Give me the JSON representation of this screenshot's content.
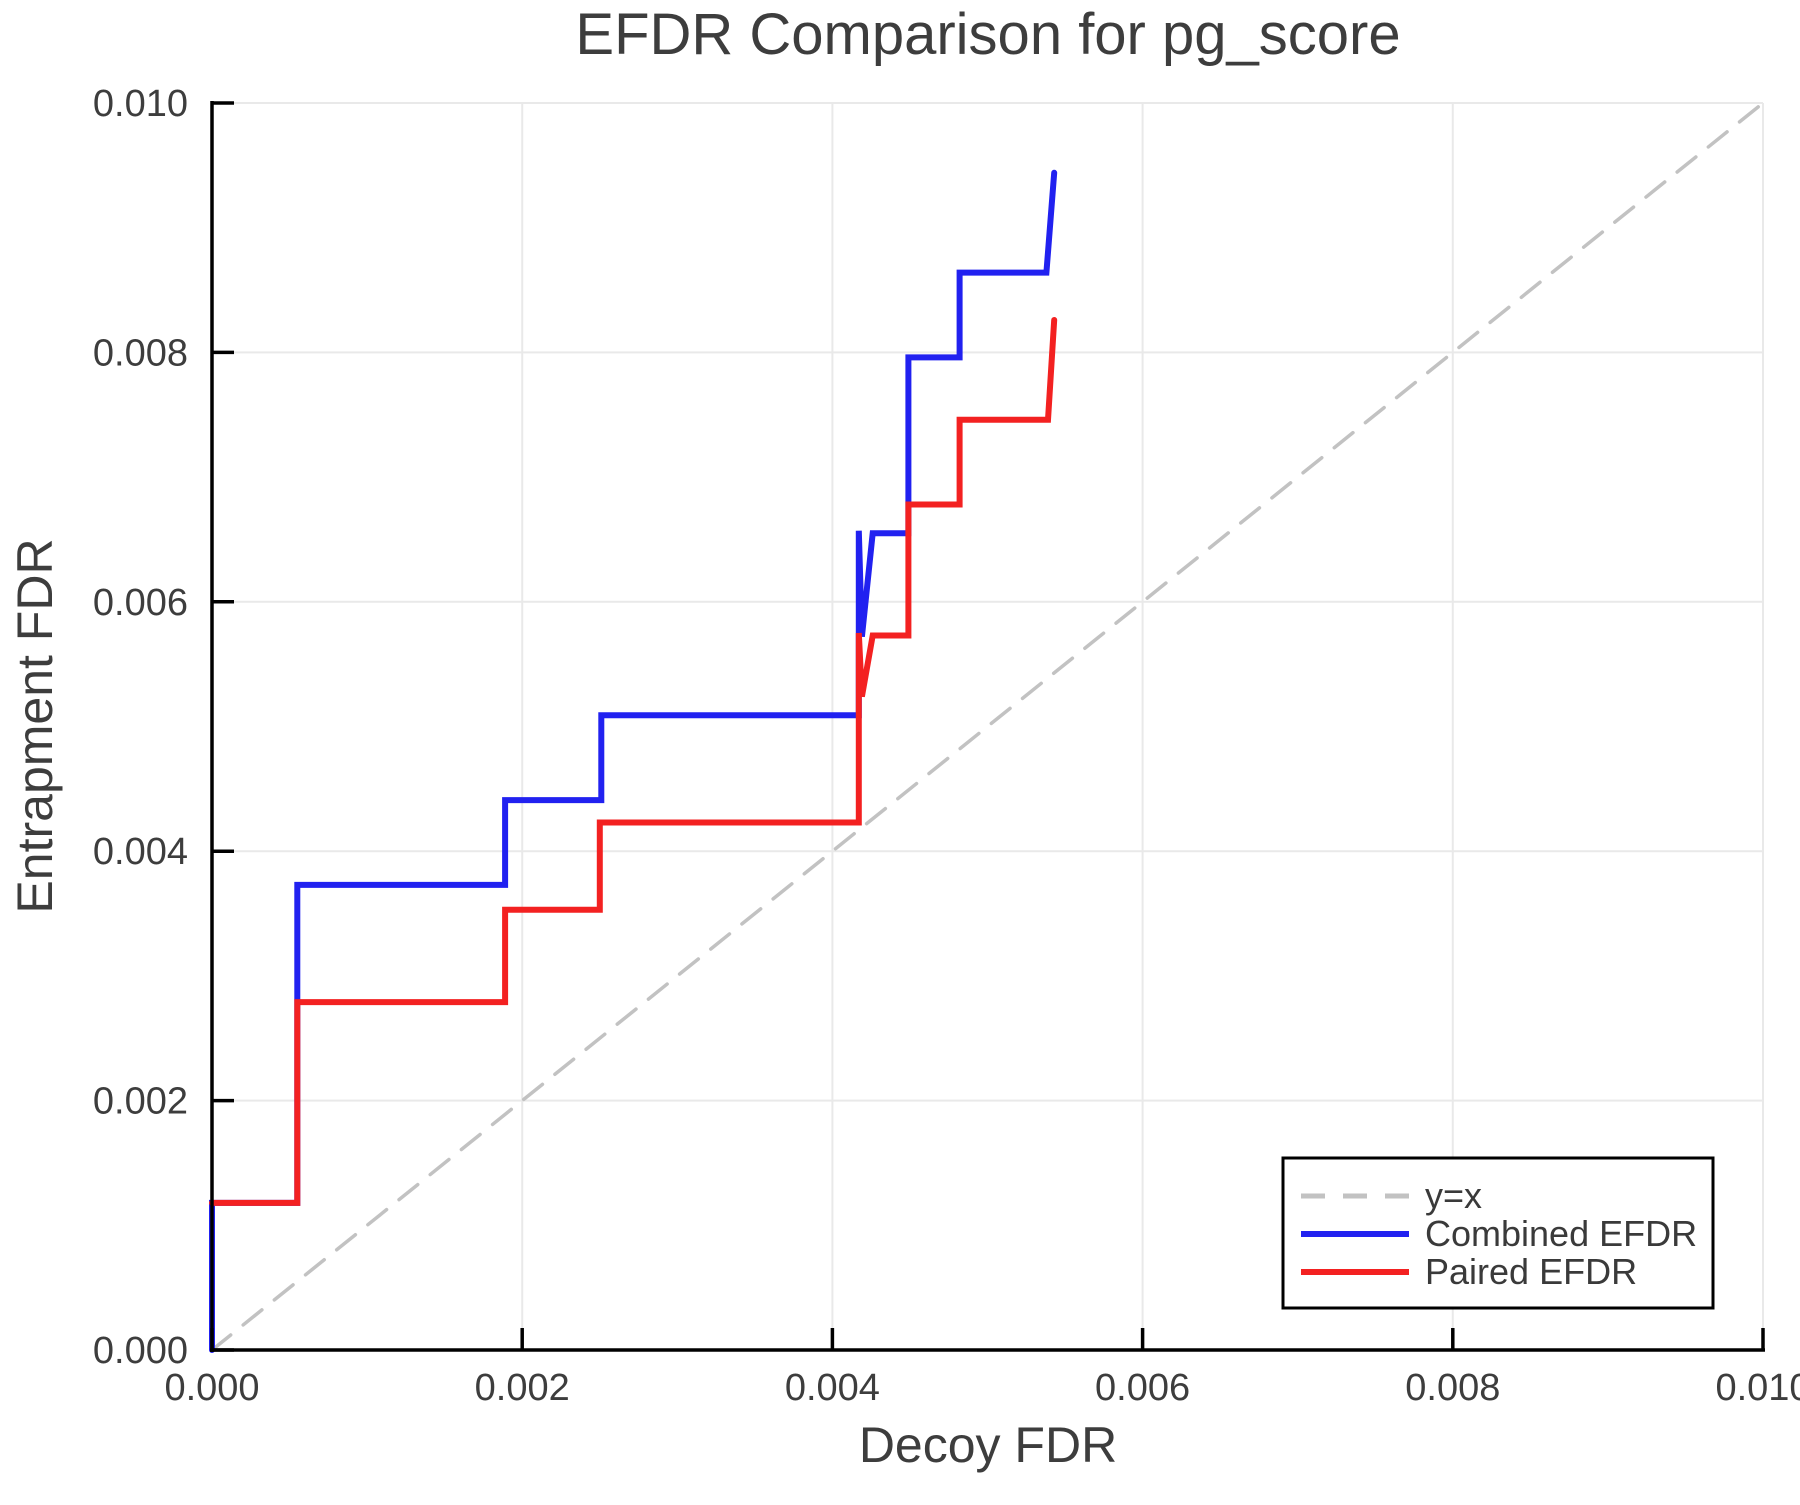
{
  "figure": {
    "background": "#ffffff"
  },
  "chart_data": {
    "type": "line",
    "title": "EFDR Comparison for pg_score",
    "xlabel": "Decoy FDR",
    "ylabel": "Entrapment FDR",
    "xlim": [
      0.0,
      0.01
    ],
    "ylim": [
      0.0,
      0.01
    ],
    "xticks": [
      0.0,
      0.002,
      0.004,
      0.006,
      0.008,
      0.01
    ],
    "yticks": [
      0.0,
      0.002,
      0.004,
      0.006,
      0.008,
      0.01
    ],
    "tick_decimals": 3,
    "grid": true,
    "grid_color": "#e9e9e9",
    "axis_color": "#000000",
    "text_color": "#3d3d3d",
    "legend": {
      "position": "lower right",
      "background": "#ffffff",
      "border_color": "#000000"
    },
    "series": [
      {
        "name": "y=x",
        "color": "#c2c2c2",
        "style": "dashed",
        "width": 3.5,
        "points": [
          [
            0.0,
            0.0
          ],
          [
            0.01,
            0.01
          ]
        ]
      },
      {
        "name": "Combined EFDR",
        "color": "#2121f0",
        "style": "solid",
        "width": 6,
        "points": [
          [
            0.0,
            0.0
          ],
          [
            0.0,
            0.00118
          ],
          [
            0.00055,
            0.00118
          ],
          [
            0.00055,
            0.00373
          ],
          [
            0.00189,
            0.00373
          ],
          [
            0.00189,
            0.00441
          ],
          [
            0.00251,
            0.00441
          ],
          [
            0.00251,
            0.00509
          ],
          [
            0.00417,
            0.00509
          ],
          [
            0.00417,
            0.00657
          ],
          [
            0.00419,
            0.00572
          ],
          [
            0.00426,
            0.00655
          ],
          [
            0.00449,
            0.00655
          ],
          [
            0.00449,
            0.00796
          ],
          [
            0.00482,
            0.00796
          ],
          [
            0.00482,
            0.00864
          ],
          [
            0.00538,
            0.00864
          ],
          [
            0.00543,
            0.00944
          ]
        ]
      },
      {
        "name": "Paired EFDR",
        "color": "#f32121",
        "style": "solid",
        "width": 6,
        "points": [
          [
            0.0,
            0.00118
          ],
          [
            0.00055,
            0.00118
          ],
          [
            0.00055,
            0.00279
          ],
          [
            0.00189,
            0.00279
          ],
          [
            0.00189,
            0.00353
          ],
          [
            0.0025,
            0.00353
          ],
          [
            0.0025,
            0.00423
          ],
          [
            0.00417,
            0.00423
          ],
          [
            0.00417,
            0.00575
          ],
          [
            0.00419,
            0.00524
          ],
          [
            0.00426,
            0.00573
          ],
          [
            0.00449,
            0.00573
          ],
          [
            0.00449,
            0.00678
          ],
          [
            0.00482,
            0.00678
          ],
          [
            0.00482,
            0.00746
          ],
          [
            0.00539,
            0.00746
          ],
          [
            0.00543,
            0.00826
          ]
        ]
      }
    ]
  }
}
